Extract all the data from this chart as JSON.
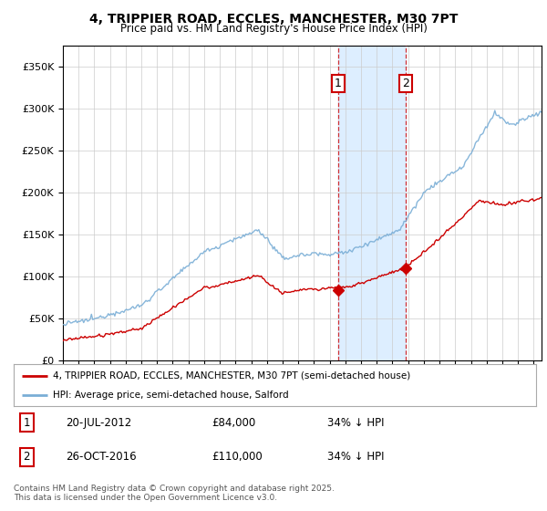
{
  "title": "4, TRIPPIER ROAD, ECCLES, MANCHESTER, M30 7PT",
  "subtitle": "Price paid vs. HM Land Registry's House Price Index (HPI)",
  "ylim": [
    0,
    375000
  ],
  "yticks": [
    0,
    50000,
    100000,
    150000,
    200000,
    250000,
    300000,
    350000
  ],
  "red_line_color": "#cc0000",
  "blue_line_color": "#7aaed6",
  "shaded_color": "#ddeeff",
  "grid_color": "#cccccc",
  "background_color": "#ffffff",
  "transaction1_x": 2012.55,
  "transaction1_price": 84000,
  "transaction2_x": 2016.82,
  "transaction2_price": 110000,
  "annotation1_label": "1",
  "annotation1_date_str": "20-JUL-2012",
  "annotation1_price_str": "£84,000",
  "annotation1_hpi_str": "34% ↓ HPI",
  "annotation2_label": "2",
  "annotation2_date_str": "26-OCT-2016",
  "annotation2_price_str": "£110,000",
  "annotation2_hpi_str": "34% ↓ HPI",
  "legend_line1": "4, TRIPPIER ROAD, ECCLES, MANCHESTER, M30 7PT (semi-detached house)",
  "legend_line2": "HPI: Average price, semi-detached house, Salford",
  "footer": "Contains HM Land Registry data © Crown copyright and database right 2025.\nThis data is licensed under the Open Government Licence v3.0.",
  "xmin": 1995,
  "xmax": 2025.5
}
